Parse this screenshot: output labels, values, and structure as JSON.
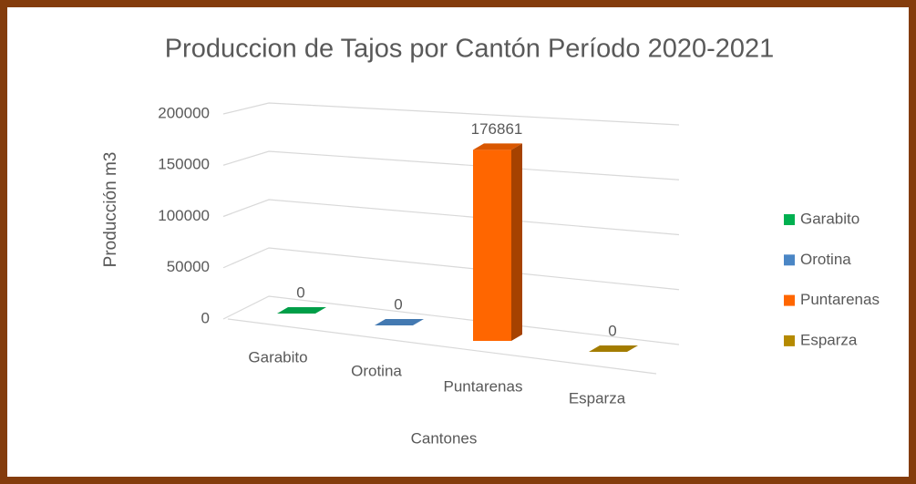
{
  "chart_data": {
    "type": "bar3d",
    "title": "Produccion de Tajos por Cantón Período 2020-2021",
    "x_label": "Cantones",
    "y_label": "Producción m3",
    "categories": [
      "Garabito",
      "Orotina",
      "Puntarenas",
      "Esparza"
    ],
    "values": [
      0,
      0,
      176861,
      0
    ],
    "colors": [
      "#00b050",
      "#4a86c5",
      "#ff6600",
      "#b58a00"
    ],
    "ylim": [
      0,
      200000
    ],
    "yticks": [
      0,
      50000,
      100000,
      150000,
      200000
    ],
    "grid": true,
    "legend": "right"
  }
}
